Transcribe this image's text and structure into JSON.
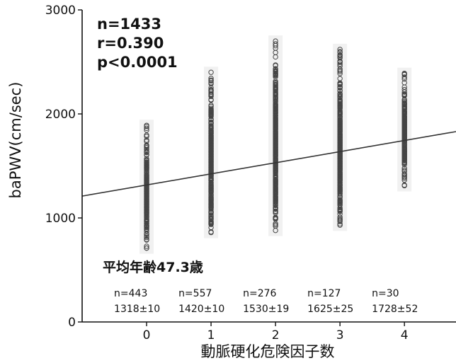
{
  "chart_data": {
    "type": "scatter",
    "xlabel": "動脈硬化危険因子数",
    "ylabel": "baPWV(cm/sec)",
    "xlim": [
      -1,
      4.8
    ],
    "ylim": [
      0,
      3000
    ],
    "x_ticks": [
      "0",
      "1",
      "2",
      "3",
      "4"
    ],
    "y_ticks": [
      "0",
      "1000",
      "2000",
      "3000"
    ],
    "stats": [
      "n=1433",
      "r=0.390",
      "p<0.0001"
    ],
    "annotation": "平均年齢47.3歳",
    "groups": [
      {
        "x": 0,
        "n_label": "n=443",
        "mean_label": "1318±10",
        "min": 710,
        "max": 1890
      },
      {
        "x": 1,
        "n_label": "n=557",
        "mean_label": "1420±10",
        "min": 860,
        "max": 2400
      },
      {
        "x": 2,
        "n_label": "n=276",
        "mean_label": "1530±19",
        "min": 880,
        "max": 2700
      },
      {
        "x": 3,
        "n_label": "n=127",
        "mean_label": "1625±25",
        "min": 930,
        "max": 2620
      },
      {
        "x": 4,
        "n_label": "n=30",
        "mean_label": "1728±52",
        "min": 1310,
        "max": 2390
      }
    ],
    "regression": {
      "x": [
        -1,
        4.8
      ],
      "y": [
        1210,
        1830
      ]
    },
    "colors": {
      "points": "#444444",
      "line": "#333333",
      "axis": "#111111"
    }
  }
}
